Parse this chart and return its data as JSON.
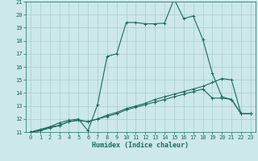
{
  "title": "",
  "xlabel": "Humidex (Indice chaleur)",
  "xlim": [
    -0.5,
    23.5
  ],
  "ylim": [
    11,
    21
  ],
  "xticks": [
    0,
    1,
    2,
    3,
    4,
    5,
    6,
    7,
    8,
    9,
    10,
    11,
    12,
    13,
    14,
    15,
    16,
    17,
    18,
    19,
    20,
    21,
    22,
    23
  ],
  "yticks": [
    11,
    12,
    13,
    14,
    15,
    16,
    17,
    18,
    19,
    20,
    21
  ],
  "bg_color": "#cce8e8",
  "grid_color": "#aacccc",
  "line_color": "#1a6b5a",
  "line1_x": [
    0,
    1,
    2,
    3,
    4,
    5,
    6,
    7,
    8,
    9,
    10,
    11,
    12,
    13,
    14,
    15,
    16,
    17,
    18,
    19,
    20,
    21,
    22,
    23
  ],
  "line1_y": [
    11.0,
    11.1,
    11.4,
    11.5,
    11.8,
    11.9,
    11.8,
    12.0,
    12.3,
    12.5,
    12.8,
    13.0,
    13.2,
    13.5,
    13.7,
    13.9,
    14.1,
    14.3,
    14.5,
    14.8,
    15.1,
    15.0,
    12.4,
    12.4
  ],
  "line2_x": [
    0,
    1,
    2,
    3,
    4,
    5,
    6,
    7,
    8,
    9,
    10,
    11,
    12,
    13,
    14,
    15,
    16,
    17,
    18,
    19,
    20,
    21,
    22,
    23
  ],
  "line2_y": [
    11.0,
    11.1,
    11.3,
    11.5,
    11.8,
    11.9,
    11.8,
    12.0,
    12.2,
    12.4,
    12.7,
    12.9,
    13.1,
    13.3,
    13.5,
    13.7,
    13.9,
    14.1,
    14.3,
    13.6,
    13.6,
    13.5,
    12.4,
    12.4
  ],
  "line3_x": [
    0,
    1,
    2,
    3,
    4,
    5,
    6,
    7,
    8,
    9,
    10,
    11,
    12,
    13,
    14,
    15,
    16,
    17,
    18,
    19,
    20,
    21,
    22,
    23
  ],
  "line3_y": [
    11.0,
    11.2,
    11.4,
    11.7,
    11.9,
    12.0,
    11.1,
    13.1,
    16.8,
    17.0,
    19.4,
    19.4,
    19.3,
    19.3,
    19.35,
    21.2,
    19.7,
    19.9,
    18.1,
    15.5,
    13.7,
    13.5,
    12.4,
    12.4
  ]
}
